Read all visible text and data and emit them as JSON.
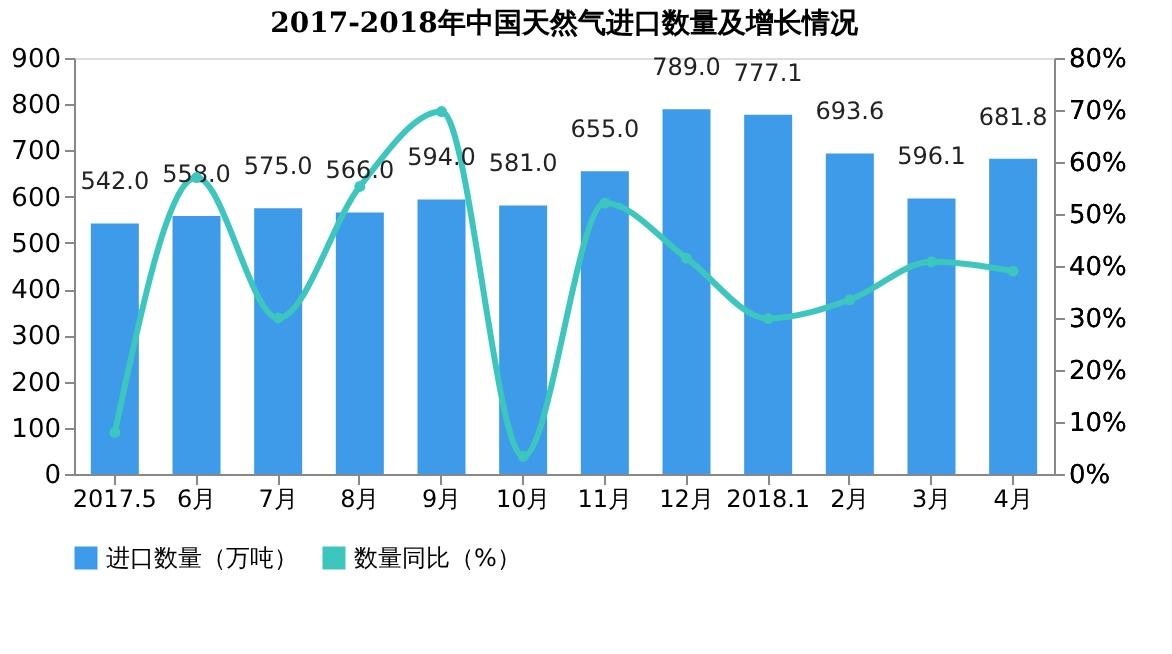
{
  "chart_data": {
    "type": "bar",
    "title": "2017-2018年中国天然气进口数量及增长情况",
    "categories": [
      "2017.5",
      "6月",
      "7月",
      "8月",
      "9月",
      "10月",
      "11月",
      "12月",
      "2018.1",
      "2月",
      "3月",
      "4月"
    ],
    "series": [
      {
        "name": "进口数量（万吨）",
        "color": "#3d9be9",
        "values": [
          542.0,
          558.0,
          575.0,
          566.0,
          594.0,
          581.0,
          655.0,
          789.0,
          777.1,
          693.6,
          596.1,
          681.8
        ],
        "value_labels": [
          "542.0",
          "558.0",
          "575.0",
          "566.0",
          "594.0",
          "581.0",
          "655.0",
          "789.0",
          "777.1",
          "693.6",
          "596.1",
          "681.8"
        ]
      },
      {
        "name": "数量同比（%）",
        "type": "line",
        "axis": "y2",
        "color": "#3cc6be",
        "marker": "circle",
        "values": [
          8.0,
          57.0,
          30.0,
          55.3,
          69.7,
          3.4,
          52.1,
          41.5,
          29.9,
          33.5,
          40.8,
          39.0
        ]
      }
    ],
    "ylim": [
      0,
      900
    ],
    "yticks": [
      0,
      100,
      200,
      300,
      400,
      500,
      600,
      700,
      800,
      900
    ],
    "y2lim": [
      0,
      80
    ],
    "y2ticks": [
      {
        "value": 0,
        "label": "0%"
      },
      {
        "value": 10,
        "label": "10%"
      },
      {
        "value": 20,
        "label": "20%"
      },
      {
        "value": 30,
        "label": "30%"
      },
      {
        "value": 40,
        "label": "40%"
      },
      {
        "value": 50,
        "label": "50%"
      },
      {
        "value": 60,
        "label": "60%"
      },
      {
        "value": 70,
        "label": "70%"
      },
      {
        "value": 80,
        "label": "80%"
      }
    ],
    "grid": false,
    "legend": "bottom"
  }
}
